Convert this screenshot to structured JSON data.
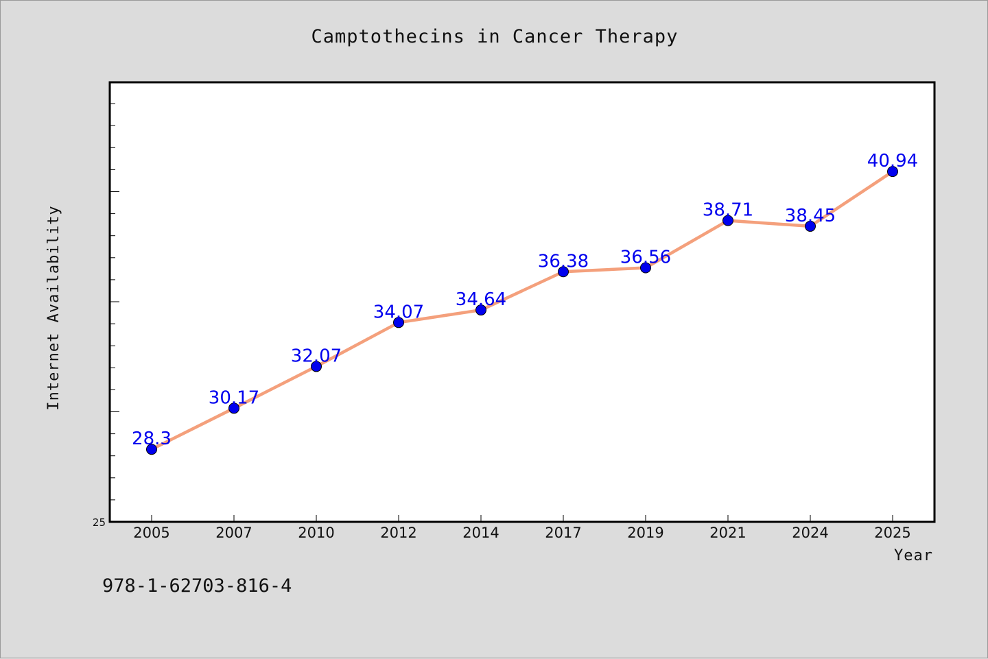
{
  "chart_data": {
    "type": "line",
    "title": "Camptothecins in Cancer Therapy",
    "xlabel": "Year",
    "ylabel": "Internet Availability",
    "categories": [
      "2005",
      "2007",
      "2010",
      "2012",
      "2014",
      "2017",
      "2019",
      "2021",
      "2024",
      "2025"
    ],
    "series": [
      {
        "values": [
          28.3,
          30.17,
          32.07,
          34.07,
          34.64,
          36.38,
          36.56,
          38.71,
          38.45,
          40.94
        ],
        "data_labels": [
          "28.3",
          "30.17",
          "32.07",
          "34.07",
          "34.64",
          "36.38",
          "36.56",
          "38.71",
          "38.45",
          "40.94"
        ],
        "line_color": "#f4a07c",
        "marker_color": "#0000ee"
      }
    ],
    "ylim": [
      25,
      45
    ],
    "y_tick_labels": [
      "25"
    ],
    "grid": false,
    "legend": "none"
  },
  "footer": {
    "isbn": "978-1-62703-816-4"
  },
  "colors": {
    "background": "#dcdcdc",
    "plot_background": "#ffffff",
    "line": "#f4a07c",
    "marker": "#0000ee",
    "data_label": "#0000ee"
  }
}
